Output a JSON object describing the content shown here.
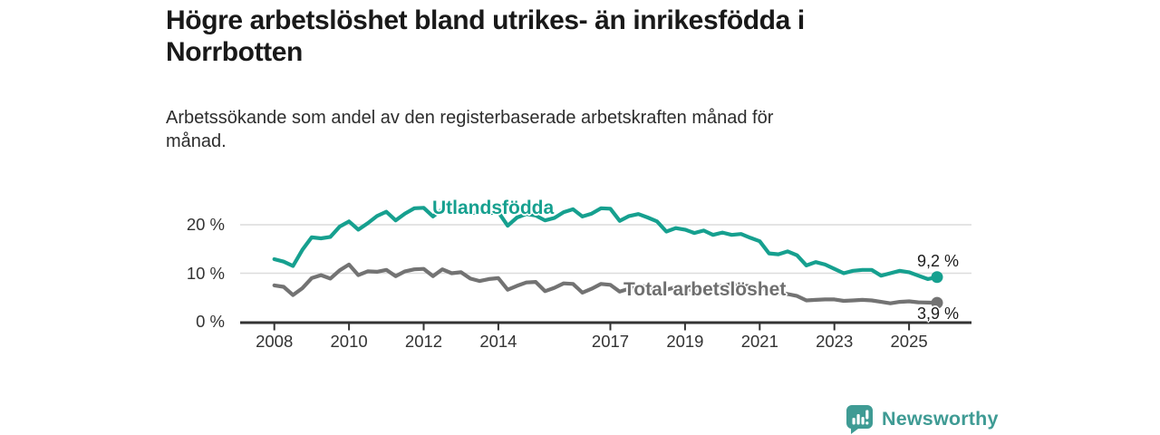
{
  "title": {
    "lines": [
      "Högre arbetslöshet bland utrikes- än inrikesfödda i",
      "Norrbotten"
    ]
  },
  "subtitle": {
    "lines": [
      "Arbetssökande som andel av den registerbaserade arbetskraften månad för",
      "månad."
    ]
  },
  "chart_data": {
    "type": "line",
    "title": "Högre arbetslöshet bland utrikes- än inrikesfödda i Norrbotten",
    "subtitle": "Arbetssökande som andel av den registerbaserade arbetskraften månad för månad.",
    "xlabel": "",
    "ylabel": "",
    "ylim": [
      0,
      25
    ],
    "xlim": [
      2008,
      2025.83
    ],
    "grid": "horizontal-gridlines-at-10-and-20",
    "legend_position": "inline-labels-on-lines",
    "y_ticks": {
      "values": [
        0,
        10,
        20
      ],
      "labels": [
        "0 %",
        "10 %",
        "20 %"
      ]
    },
    "x_ticks": {
      "years": [
        2008,
        2010,
        2012,
        2014,
        2017,
        2019,
        2021,
        2023,
        2025
      ],
      "labels": [
        "2008",
        "2010",
        "2012",
        "2014",
        "2017",
        "2019",
        "2021",
        "2023",
        "2025"
      ]
    },
    "series": [
      {
        "name": "Utlandsfödda",
        "color": "#16a08f",
        "end_label": "9,2 %",
        "end_value": 9.2,
        "x_start": 2008.0,
        "x_step": 0.25,
        "x_end": 2025.75,
        "values": [
          12.9,
          12.4,
          11.5,
          14.8,
          17.4,
          17.2,
          17.5,
          19.6,
          20.7,
          19.0,
          20.3,
          21.8,
          22.7,
          20.9,
          22.3,
          23.4,
          23.5,
          21.7,
          23.2,
          23.7,
          23.0,
          22.4,
          22.7,
          22.4,
          22.6,
          19.8,
          21.5,
          22.2,
          21.9,
          20.9,
          21.4,
          22.6,
          23.2,
          21.7,
          22.3,
          23.4,
          23.3,
          20.8,
          21.8,
          22.2,
          21.5,
          20.7,
          18.6,
          19.3,
          19.0,
          18.3,
          18.8,
          17.9,
          18.4,
          17.9,
          18.1,
          17.3,
          16.6,
          14.1,
          13.9,
          14.5,
          13.7,
          11.6,
          12.3,
          11.8,
          10.9,
          10.0,
          10.5,
          10.7,
          10.7,
          9.5,
          10.0,
          10.5,
          10.2,
          9.5,
          8.8,
          9.2
        ]
      },
      {
        "name": "Total arbetslöshet",
        "color": "#737373",
        "end_label": "3,9 %",
        "end_value": 3.9,
        "x_start": 2008.0,
        "x_step": 0.25,
        "x_end": 2025.75,
        "values": [
          7.5,
          7.2,
          5.5,
          6.9,
          9.0,
          9.6,
          8.9,
          10.6,
          11.8,
          9.6,
          10.4,
          10.3,
          10.7,
          9.4,
          10.4,
          10.8,
          10.9,
          9.4,
          10.8,
          10.0,
          10.2,
          8.9,
          8.4,
          8.8,
          9.0,
          6.6,
          7.4,
          8.1,
          8.2,
          6.3,
          7.0,
          7.9,
          7.8,
          6.0,
          6.8,
          7.8,
          7.6,
          6.2,
          6.8,
          7.3,
          7.3,
          6.3,
          6.6,
          7.1,
          7.0,
          6.3,
          6.5,
          7.0,
          7.4,
          7.8,
          7.5,
          7.3,
          7.0,
          6.4,
          6.0,
          5.7,
          5.3,
          4.4,
          4.5,
          4.6,
          4.6,
          4.3,
          4.4,
          4.5,
          4.4,
          4.1,
          3.8,
          4.1,
          4.2,
          4.0,
          3.95,
          3.9
        ]
      }
    ]
  },
  "colors": {
    "accent_teal": "#16a08f",
    "line_gray": "#737373",
    "axis": "#333333",
    "gridline": "#dcdcdc",
    "brand_teal": "#3f9b94"
  },
  "footer": {
    "brand": "Newsworthy"
  }
}
